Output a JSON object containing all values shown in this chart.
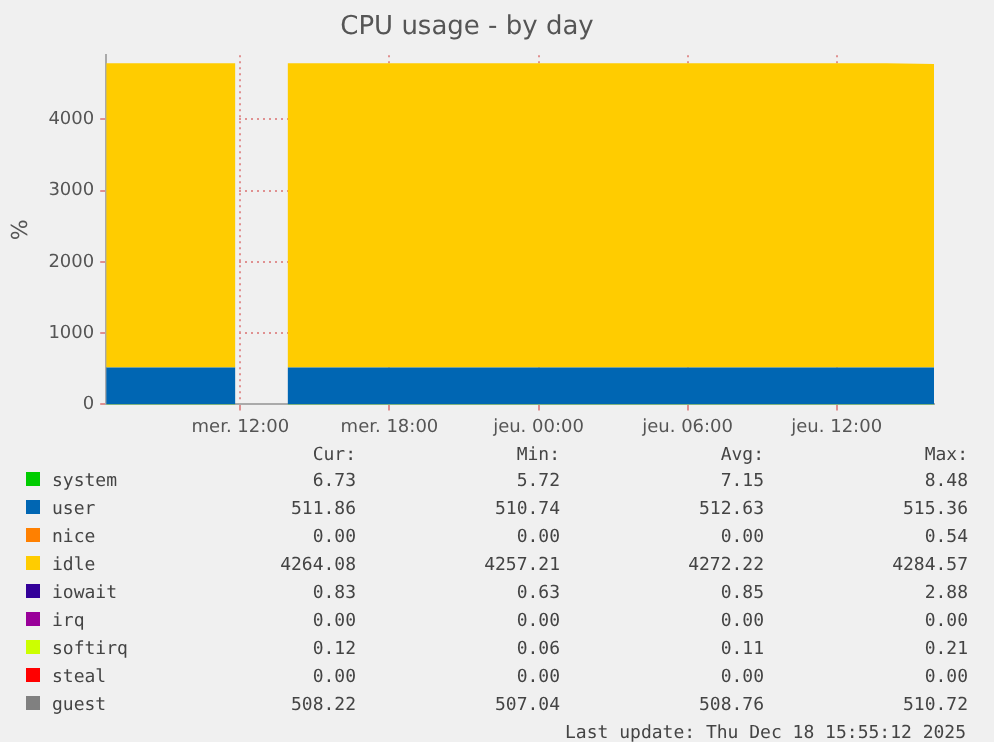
{
  "chart_data": {
    "type": "area",
    "title": "CPU usage - by day",
    "ylabel": "%",
    "stacked": true,
    "grid": true,
    "legend": "bottom",
    "marker": "none",
    "x": [
      "2025-12-17T06:36",
      "2025-12-17T08:00",
      "2025-12-17T10:00",
      "2025-12-17T11:48",
      "2025-12-17T12:48",
      "2025-12-17T13:54",
      "2025-12-17T16:00",
      "2025-12-17T18:00",
      "2025-12-17T20:00",
      "2025-12-17T22:00",
      "2025-12-18T00:00",
      "2025-12-18T02:00",
      "2025-12-18T04:00",
      "2025-12-18T06:00",
      "2025-12-18T08:00",
      "2025-12-18T10:00",
      "2025-12-18T12:00",
      "2025-12-18T14:00",
      "2025-12-18T15:55"
    ],
    "xlim": [
      "2025-12-17T06:36",
      "2025-12-18T15:55"
    ],
    "xticks": [
      {
        "value": "2025-12-17T12:00",
        "label": "mer. 12:00"
      },
      {
        "value": "2025-12-17T18:00",
        "label": "mer. 18:00"
      },
      {
        "value": "2025-12-18T00:00",
        "label": "jeu. 00:00"
      },
      {
        "value": "2025-12-18T06:00",
        "label": "jeu. 06:00"
      },
      {
        "value": "2025-12-18T12:00",
        "label": "jeu. 12:00"
      }
    ],
    "ylim": [
      0,
      4900
    ],
    "yticks": [
      0,
      1000,
      2000,
      3000,
      4000
    ],
    "series": [
      {
        "name": "system",
        "color": "#00cc00",
        "values": [
          7,
          7,
          7,
          7,
          null,
          7,
          7,
          7,
          7,
          7,
          7,
          7,
          7,
          7,
          7,
          7,
          7,
          7,
          7
        ]
      },
      {
        "name": "user",
        "color": "#0066b3",
        "values": [
          510,
          510,
          510,
          510,
          null,
          510,
          510,
          510,
          510,
          510,
          510,
          510,
          510,
          510,
          510,
          510,
          510,
          510,
          510
        ]
      },
      {
        "name": "nice",
        "color": "#ff8000",
        "values": [
          null,
          null,
          null,
          null,
          null,
          null,
          null,
          null,
          null,
          null,
          null,
          null,
          null,
          null,
          null,
          null,
          null,
          null,
          null
        ]
      },
      {
        "name": "idle",
        "color": "#ffcc00",
        "values": [
          4270,
          4270,
          4270,
          4270,
          null,
          4270,
          4270,
          4270,
          4270,
          4270,
          4270,
          4270,
          4270,
          4270,
          4270,
          4270,
          4270,
          4270,
          4260
        ]
      },
      {
        "name": "iowait",
        "color": "#330099",
        "values": [
          null,
          null,
          null,
          null,
          null,
          null,
          null,
          null,
          null,
          null,
          null,
          null,
          null,
          null,
          null,
          null,
          null,
          null,
          null
        ]
      },
      {
        "name": "irq",
        "color": "#990099",
        "values": [
          null,
          null,
          null,
          null,
          null,
          null,
          null,
          null,
          null,
          null,
          null,
          null,
          null,
          null,
          null,
          null,
          null,
          null,
          null
        ]
      },
      {
        "name": "softirq",
        "color": "#ccff00",
        "values": [
          null,
          null,
          null,
          null,
          null,
          null,
          null,
          null,
          null,
          null,
          null,
          null,
          null,
          null,
          null,
          null,
          null,
          null,
          null
        ]
      },
      {
        "name": "steal",
        "color": "#ff0000",
        "values": [
          null,
          null,
          null,
          null,
          null,
          null,
          null,
          null,
          null,
          null,
          null,
          null,
          null,
          null,
          null,
          null,
          null,
          null,
          null
        ]
      },
      {
        "name": "guest",
        "color": "#808080",
        "values": [
          null,
          null,
          null,
          null,
          null,
          null,
          null,
          null,
          null,
          null,
          null,
          null,
          null,
          null,
          null,
          null,
          null,
          null,
          null
        ]
      }
    ],
    "annotations": [
      "Cur:",
      "Min:",
      "Avg:",
      "Max:",
      "6.73",
      "5.72",
      "7.15",
      "8.48",
      "511.86",
      "510.74",
      "512.63",
      "515.36",
      "0.00",
      "0.00",
      "0.00",
      "0.54",
      "4264.08",
      "4257.21",
      "4272.22",
      "4284.57",
      "0.83",
      "0.63",
      "0.85",
      "2.88",
      "0.00",
      "0.00",
      "0.00",
      "0.00",
      "0.12",
      "0.06",
      "0.11",
      "0.21",
      "0.00",
      "0.00",
      "0.00",
      "0.00",
      "508.22",
      "507.04",
      "508.76",
      "510.72",
      "Last update: Thu Dec 18 15:55:12 2025"
    ]
  }
}
